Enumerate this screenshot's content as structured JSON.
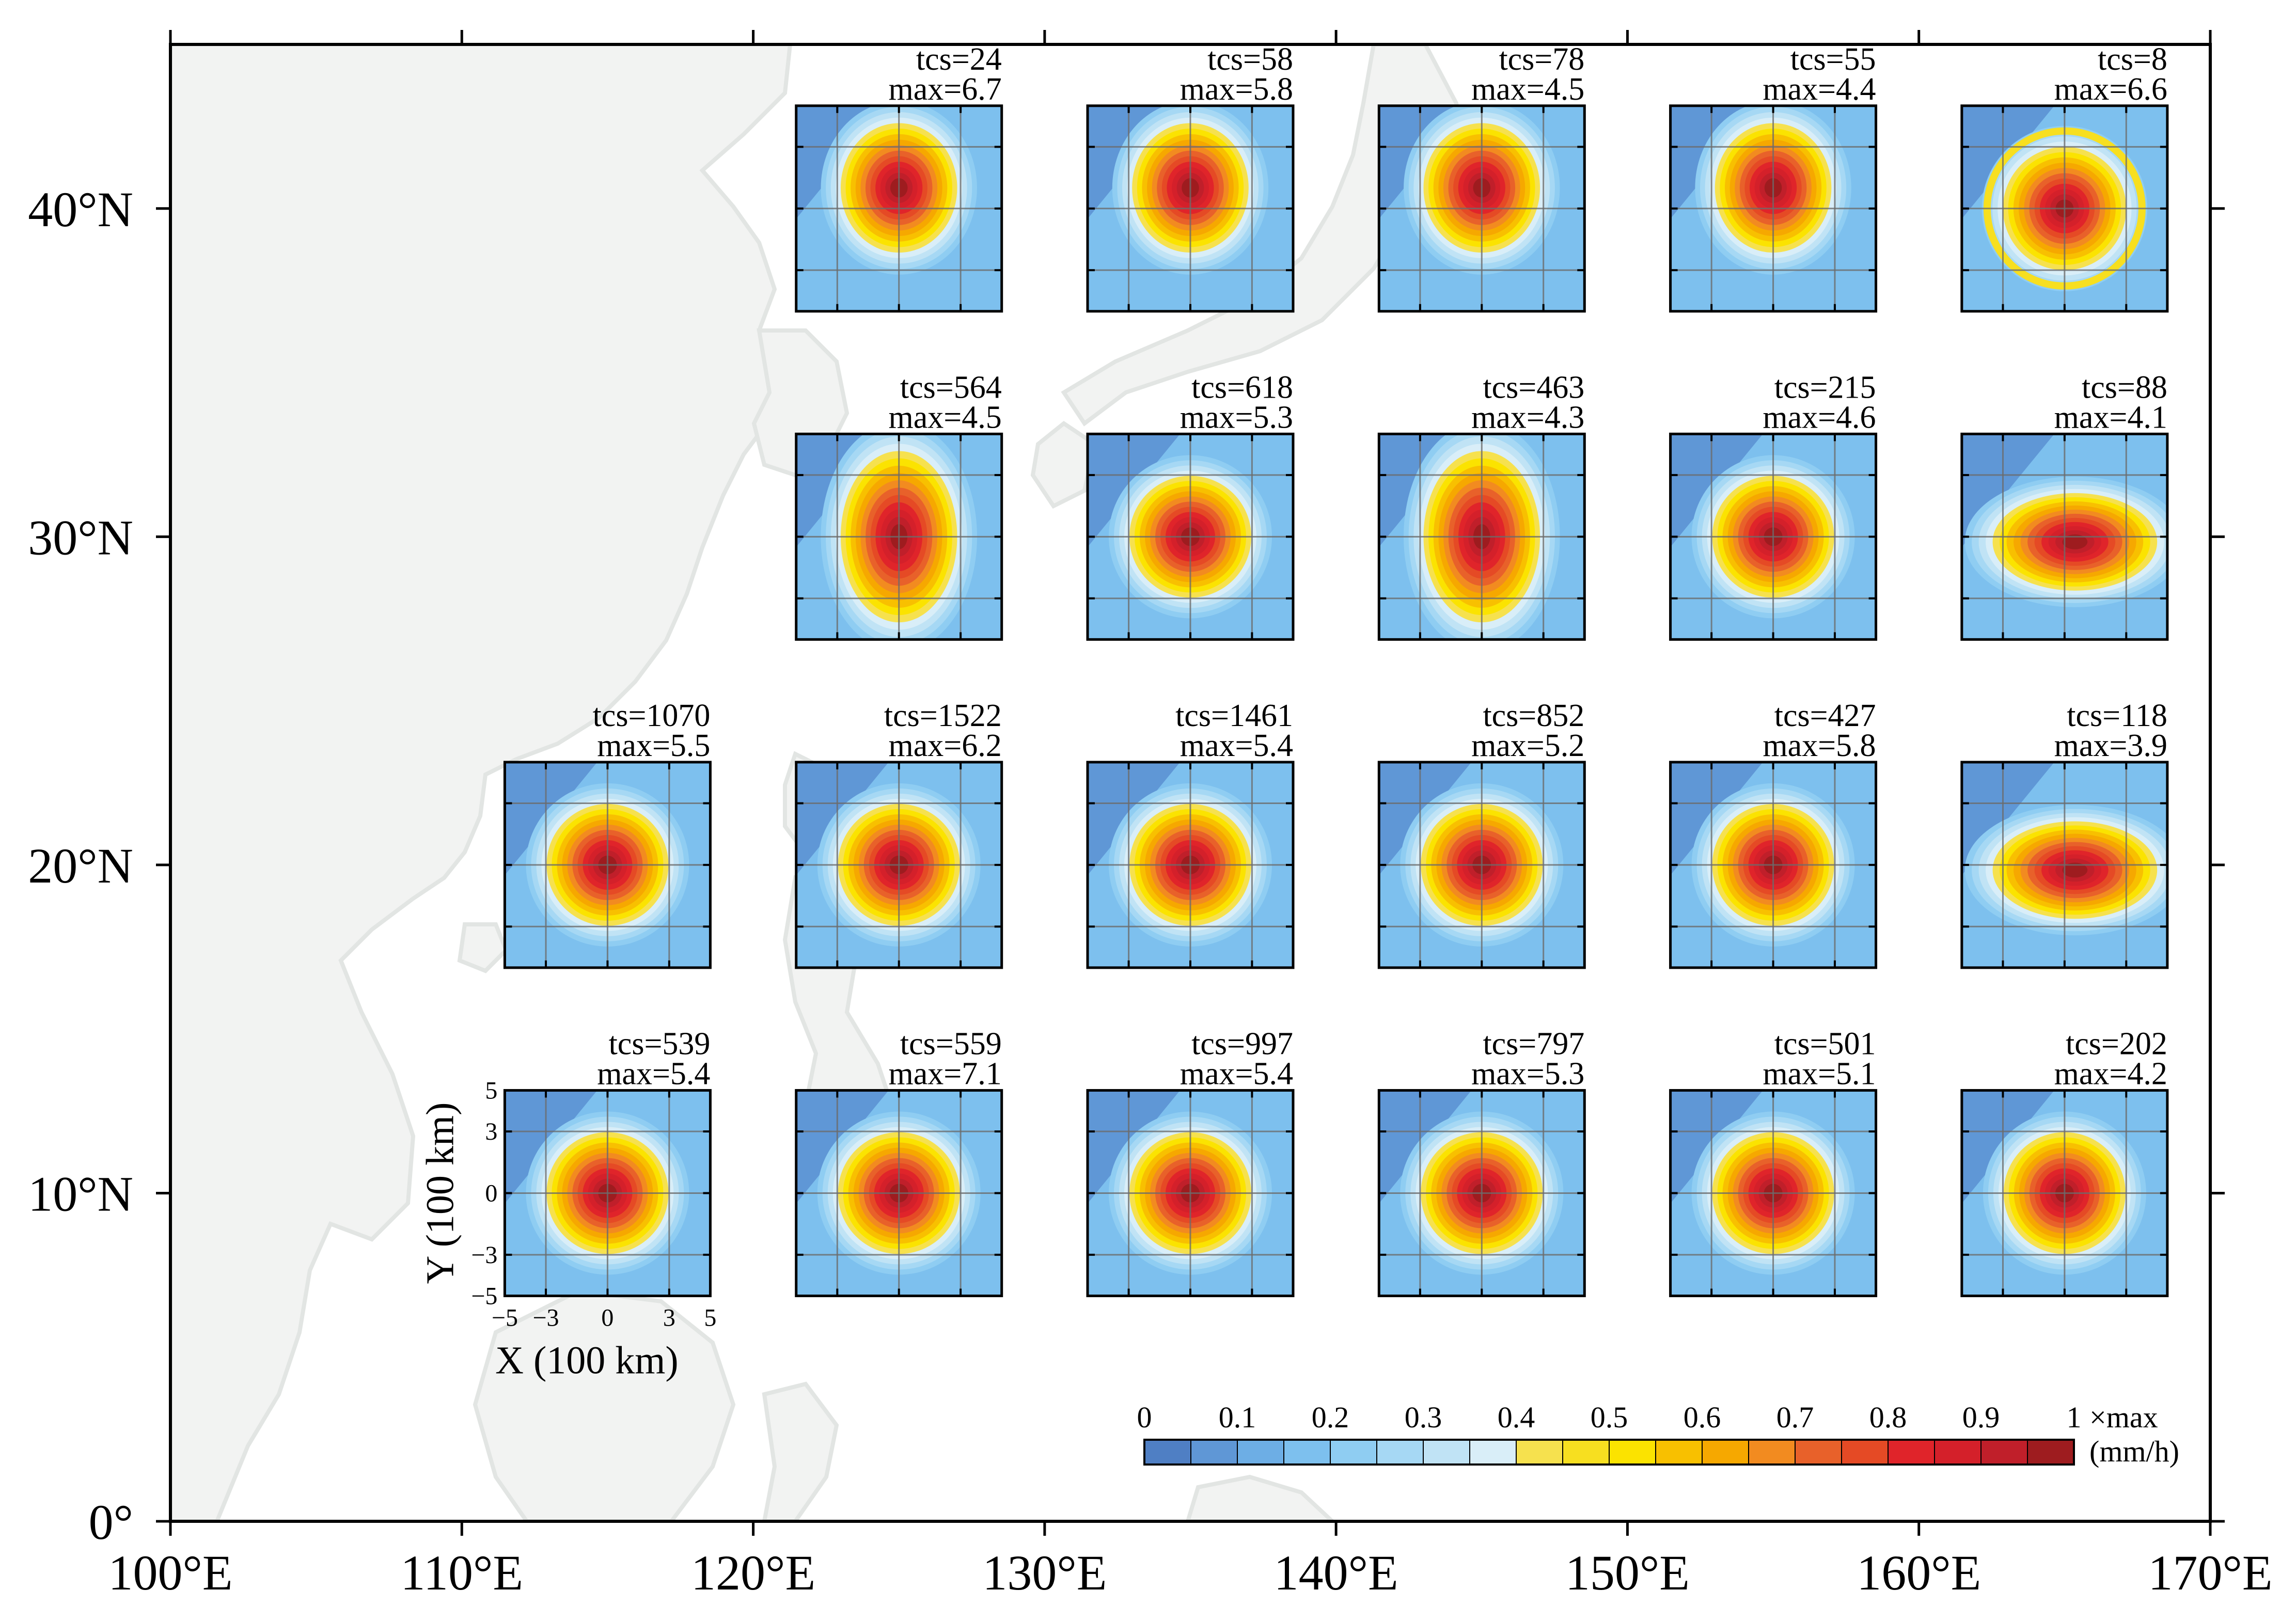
{
  "chart_data": {
    "type": "heatmap",
    "map": {
      "x_ticks": [
        {
          "value": 100,
          "label": "100°E"
        },
        {
          "value": 110,
          "label": "110°E"
        },
        {
          "value": 120,
          "label": "120°E"
        },
        {
          "value": 130,
          "label": "130°E"
        },
        {
          "value": 140,
          "label": "140°E"
        },
        {
          "value": 150,
          "label": "150°E"
        },
        {
          "value": 160,
          "label": "160°E"
        },
        {
          "value": 170,
          "label": "170°E"
        }
      ],
      "y_ticks": [
        {
          "value": 0,
          "label": "0°"
        },
        {
          "value": 10,
          "label": "10°N"
        },
        {
          "value": 20,
          "label": "20°N"
        },
        {
          "value": 30,
          "label": "30°N"
        },
        {
          "value": 40,
          "label": "40°N"
        }
      ],
      "xlim": [
        100,
        170
      ],
      "ylim": [
        0,
        45
      ]
    },
    "panel_axes": {
      "xlabel": "X (100 km)",
      "ylabel": "Y (100 km)",
      "x_tick_labels": [
        "−5",
        "−3",
        "0",
        "3",
        "5"
      ],
      "y_tick_labels": [
        "5",
        "3",
        "0",
        "−3",
        "−5"
      ],
      "range": [
        -5,
        5
      ]
    },
    "panels": [
      {
        "lon": 125,
        "lat": 40,
        "tcs": "tcs=24",
        "max": "max=6.7",
        "shape": "north"
      },
      {
        "lon": 135,
        "lat": 40,
        "tcs": "tcs=58",
        "max": "max=5.8",
        "shape": "north"
      },
      {
        "lon": 145,
        "lat": 40,
        "tcs": "tcs=78",
        "max": "max=4.5",
        "shape": "north"
      },
      {
        "lon": 155,
        "lat": 40,
        "tcs": "tcs=55",
        "max": "max=4.4",
        "shape": "north"
      },
      {
        "lon": 165,
        "lat": 40,
        "tcs": "tcs=8",
        "max": "max=6.6",
        "shape": "ring"
      },
      {
        "lon": 125,
        "lat": 30,
        "tcs": "tcs=564",
        "max": "max=4.5",
        "shape": "tall"
      },
      {
        "lon": 135,
        "lat": 30,
        "tcs": "tcs=618",
        "max": "max=5.3",
        "shape": "round"
      },
      {
        "lon": 145,
        "lat": 30,
        "tcs": "tcs=463",
        "max": "max=4.3",
        "shape": "tall"
      },
      {
        "lon": 155,
        "lat": 30,
        "tcs": "tcs=215",
        "max": "max=4.6",
        "shape": "round"
      },
      {
        "lon": 165,
        "lat": 30,
        "tcs": "tcs=88",
        "max": "max=4.1",
        "shape": "east"
      },
      {
        "lon": 115,
        "lat": 20,
        "tcs": "tcs=1070",
        "max": "max=5.5",
        "shape": "round"
      },
      {
        "lon": 125,
        "lat": 20,
        "tcs": "tcs=1522",
        "max": "max=6.2",
        "shape": "round"
      },
      {
        "lon": 135,
        "lat": 20,
        "tcs": "tcs=1461",
        "max": "max=5.4",
        "shape": "round"
      },
      {
        "lon": 145,
        "lat": 20,
        "tcs": "tcs=852",
        "max": "max=5.2",
        "shape": "round"
      },
      {
        "lon": 155,
        "lat": 20,
        "tcs": "tcs=427",
        "max": "max=5.8",
        "shape": "round"
      },
      {
        "lon": 165,
        "lat": 20,
        "tcs": "tcs=118",
        "max": "max=3.9",
        "shape": "east"
      },
      {
        "lon": 115,
        "lat": 10,
        "tcs": "tcs=539",
        "max": "max=5.4",
        "shape": "round"
      },
      {
        "lon": 125,
        "lat": 10,
        "tcs": "tcs=559",
        "max": "max=7.1",
        "shape": "round"
      },
      {
        "lon": 135,
        "lat": 10,
        "tcs": "tcs=997",
        "max": "max=5.4",
        "shape": "round"
      },
      {
        "lon": 145,
        "lat": 10,
        "tcs": "tcs=797",
        "max": "max=5.3",
        "shape": "round"
      },
      {
        "lon": 155,
        "lat": 10,
        "tcs": "tcs=501",
        "max": "max=5.1",
        "shape": "round"
      },
      {
        "lon": 165,
        "lat": 10,
        "tcs": "tcs=202",
        "max": "max=4.2",
        "shape": "round"
      }
    ],
    "colorbar": {
      "labels": [
        "0",
        "0.1",
        "0.2",
        "0.3",
        "0.4",
        "0.5",
        "0.6",
        "0.7",
        "0.8",
        "0.9",
        "1"
      ],
      "unit_top": "×max",
      "unit_bottom": "(mm/h)",
      "colors": [
        "#4f7fc4",
        "#5f97d6",
        "#6daee5",
        "#7dc0ee",
        "#8fcdf2",
        "#a6d8f4",
        "#c0e3f5",
        "#d9eef8",
        "#f6e14e",
        "#f7df20",
        "#fbe300",
        "#f8c000",
        "#f6a800",
        "#f28b20",
        "#e8612a",
        "#e54a25",
        "#e0242a",
        "#d4202a",
        "#c01f2a",
        "#9e1c1f"
      ]
    }
  }
}
